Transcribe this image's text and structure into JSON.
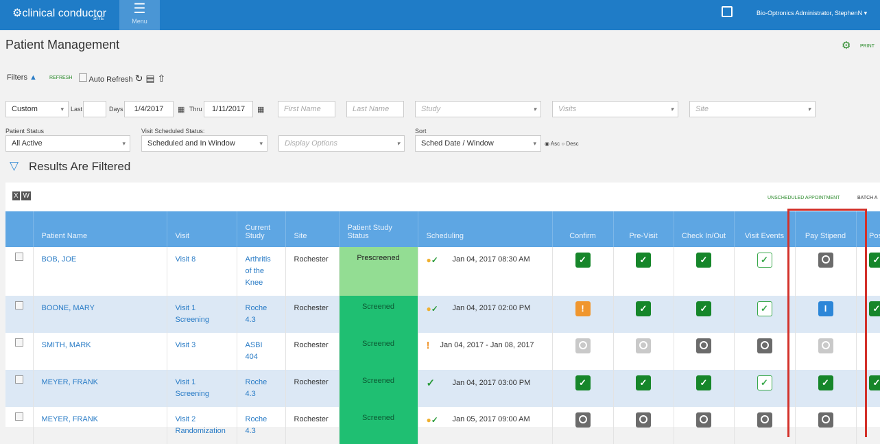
{
  "header": {
    "logo": "clinical conductor",
    "logo_sub": "SITE",
    "menu": "Menu",
    "user": "Bio-Optronics Administrator, StephenN"
  },
  "page": {
    "title": "Patient Management",
    "print": "PRINT"
  },
  "filters": {
    "label": "Filters",
    "refresh": "REFRESH",
    "auto_refresh": "Auto Refresh",
    "range": "Custom",
    "last": "Last",
    "days": "Days",
    "from": "1/4/2017",
    "thru": "Thru",
    "to": "1/11/2017",
    "first_name": "First Name",
    "last_name": "Last Name",
    "study": "Study",
    "visits": "Visits",
    "site": "Site",
    "patient_status_label": "Patient Status",
    "patient_status": "All Active",
    "visit_status_label": "Visit Scheduled Status:",
    "visit_status": "Scheduled and In Window",
    "display_options": "Display Options",
    "sort_label": "Sort",
    "sort": "Sched Date / Window",
    "asc": "Asc",
    "desc": "Desc"
  },
  "results": {
    "title": "Results Are Filtered",
    "unscheduled": "UNSCHEDULED APPOINTMENT",
    "batch": "BATCH A"
  },
  "table": {
    "columns": [
      "Patient Name",
      "Visit",
      "Current Study",
      "Site",
      "Patient Study Status",
      "Scheduling",
      "Confirm",
      "Pre-Visit",
      "Check In/Out",
      "Visit Events",
      "Pay Stipend",
      "Post"
    ],
    "rows": [
      [
        "BOB, JOE",
        "Visit 8",
        "Arthritis of the Knee",
        "Rochester",
        "Prescreened",
        "Jan 04, 2017 08:30 AM"
      ],
      [
        "BOONE, MARY",
        "Visit 1 Screening",
        "Roche 4.3",
        "Rochester",
        "Screened",
        "Jan 04, 2017 02:00 PM"
      ],
      [
        "SMITH, MARK",
        "Visit 3",
        "ASBI 404",
        "Rochester",
        "Screened",
        "Jan 04, 2017 - Jan 08, 2017"
      ],
      [
        "MEYER, FRANK",
        "Visit 1 Screening",
        "Roche 4.3",
        "Rochester",
        "Screened",
        "Jan 04, 2017 03:00 PM"
      ],
      [
        "MEYER, FRANK",
        "Visit 2 Randomization",
        "Roche 4.3",
        "Rochester",
        "Screened",
        "Jan 05, 2017 09:00 AM"
      ]
    ]
  }
}
